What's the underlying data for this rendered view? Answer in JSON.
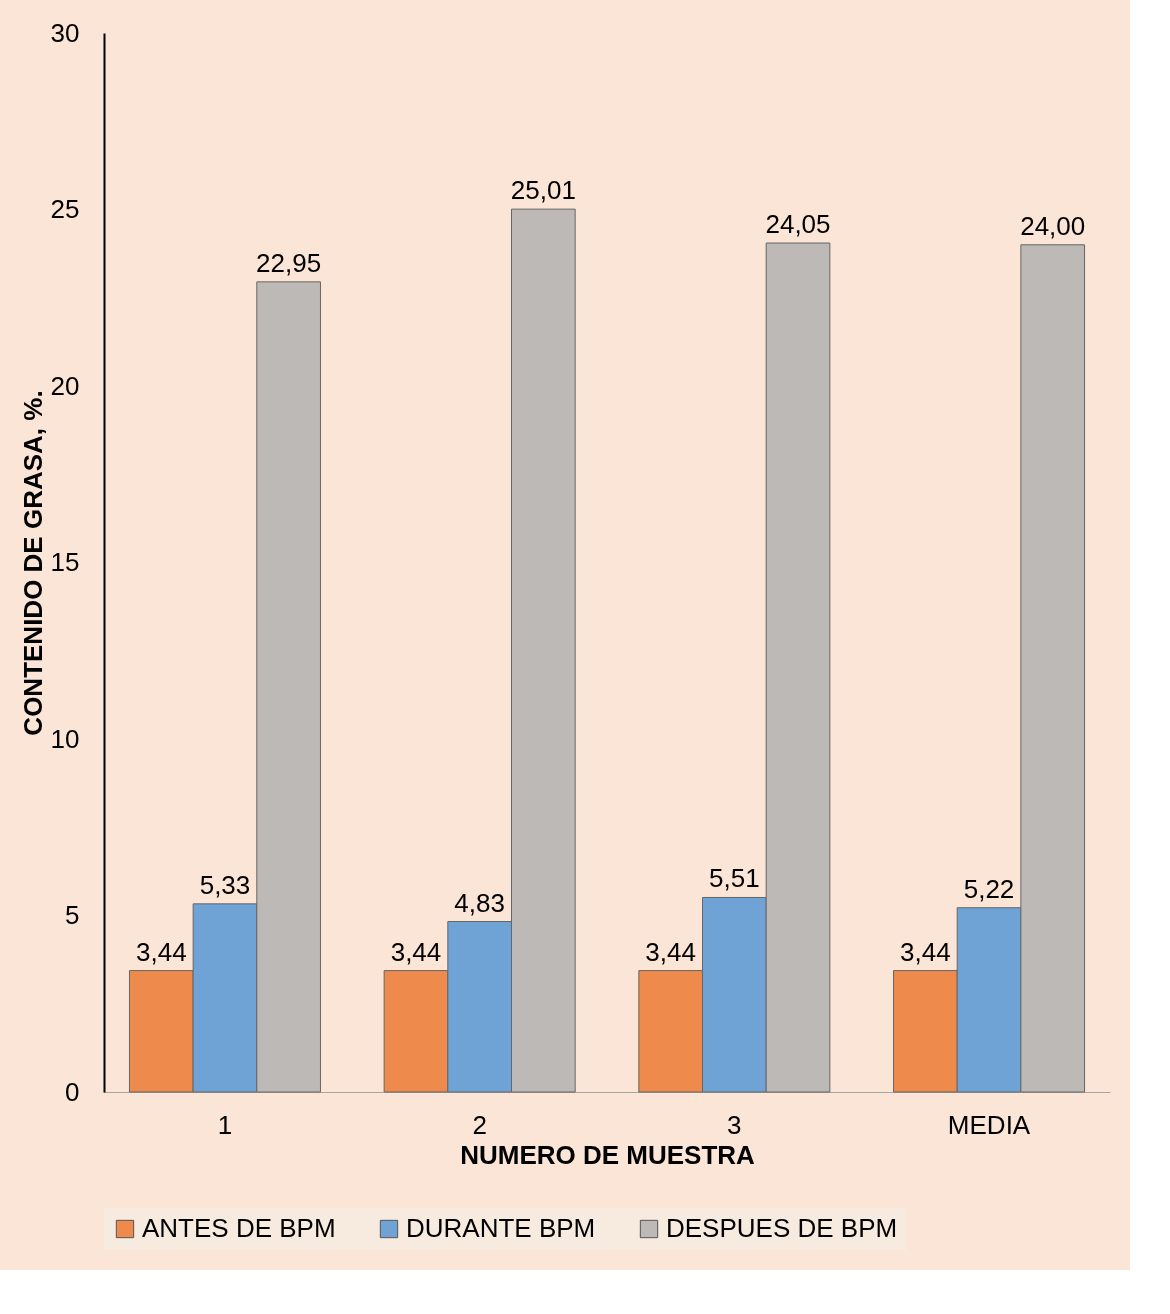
{
  "chart_data": {
    "type": "bar",
    "xlabel": "NUMERO DE MUESTRA",
    "ylabel": "CONTENIDO DE GRASA, %.",
    "categories": [
      "1",
      "2",
      "3",
      "MEDIA"
    ],
    "series": [
      {
        "name": "ANTES DE BPM",
        "color": "#ed8a4c",
        "values": [
          3.44,
          3.44,
          3.44,
          3.44
        ],
        "value_labels": [
          "3,44",
          "3,44",
          "3,44",
          "3,44"
        ]
      },
      {
        "name": "DURANTE BPM",
        "color": "#6fa3d6",
        "values": [
          5.33,
          4.83,
          5.51,
          5.22
        ],
        "value_labels": [
          "5,33",
          "4,83",
          "5,51",
          "5,22"
        ]
      },
      {
        "name": "DESPUES DE BPM",
        "color": "#bdb9b6",
        "values": [
          22.95,
          25.01,
          24.05,
          24.0
        ],
        "value_labels": [
          "22,95",
          "25,01",
          "24,05",
          "24,00"
        ]
      }
    ],
    "ylim": [
      0,
      30
    ],
    "yticks": [
      0,
      5,
      10,
      15,
      20,
      25,
      30
    ],
    "grid": false,
    "legend": "bottom"
  }
}
